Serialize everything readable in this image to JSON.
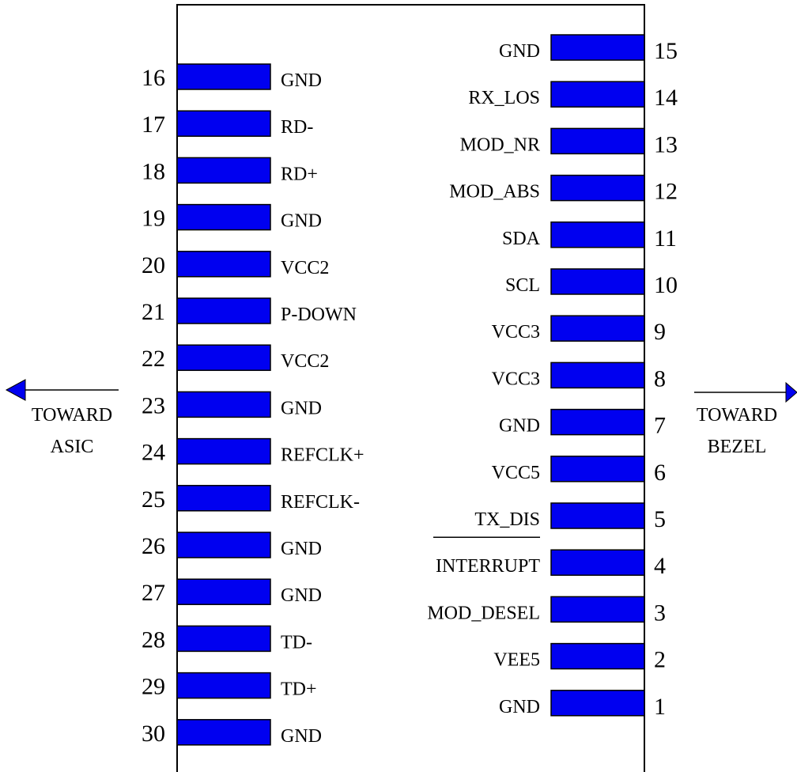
{
  "diagram": {
    "left_direction": {
      "line1": "TOWARD",
      "line2": "ASIC"
    },
    "right_direction": {
      "line1": "TOWARD",
      "line2": "BEZEL"
    },
    "left_pins": [
      {
        "number": "16",
        "label": "GND"
      },
      {
        "number": "17",
        "label": "RD-"
      },
      {
        "number": "18",
        "label": "RD+"
      },
      {
        "number": "19",
        "label": "GND"
      },
      {
        "number": "20",
        "label": "VCC2"
      },
      {
        "number": "21",
        "label": "P-DOWN"
      },
      {
        "number": "22",
        "label": "VCC2"
      },
      {
        "number": "23",
        "label": "GND"
      },
      {
        "number": "24",
        "label": "REFCLK+"
      },
      {
        "number": "25",
        "label": "REFCLK-"
      },
      {
        "number": "26",
        "label": "GND"
      },
      {
        "number": "27",
        "label": "GND"
      },
      {
        "number": "28",
        "label": "TD-"
      },
      {
        "number": "29",
        "label": "TD+"
      },
      {
        "number": "30",
        "label": "GND"
      }
    ],
    "right_pins": [
      {
        "number": "15",
        "label": "GND"
      },
      {
        "number": "14",
        "label": "RX_LOS"
      },
      {
        "number": "13",
        "label": "MOD_NR"
      },
      {
        "number": "12",
        "label": "MOD_ABS"
      },
      {
        "number": "11",
        "label": "SDA"
      },
      {
        "number": "10",
        "label": "SCL"
      },
      {
        "number": "9",
        "label": "VCC3"
      },
      {
        "number": "8",
        "label": "VCC3"
      },
      {
        "number": "7",
        "label": "GND"
      },
      {
        "number": "6",
        "label": "VCC5"
      },
      {
        "number": "5",
        "label": "TX_DIS"
      },
      {
        "number": "4",
        "label": "INTERRUPT",
        "overline": true
      },
      {
        "number": "3",
        "label": "MOD_DESEL"
      },
      {
        "number": "2",
        "label": "VEE5"
      },
      {
        "number": "1",
        "label": "GND"
      }
    ],
    "colors": {
      "pad": "#0000f0",
      "arrow": "#0000f0",
      "outline": "#000000"
    }
  }
}
